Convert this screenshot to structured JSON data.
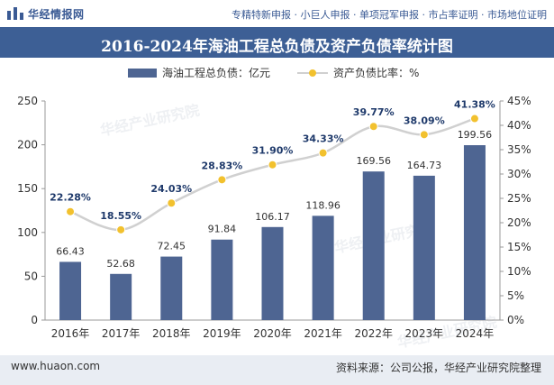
{
  "header": {
    "logo_text": "华经情报网",
    "links": "专精特新申报 · 小巨人申报 · 单项冠军申报 · 市占率证明 · 市场地位证明"
  },
  "footer": {
    "website": "www.huaon.com",
    "source": "资料来源：公司公报，华经产业研究院整理"
  },
  "watermark": "华经产业研究院",
  "colors": {
    "bar": "#4e6592",
    "line": "#d0d0d0",
    "marker": "#f2c12e",
    "title_bg": "#3d5f95"
  },
  "chart_data": {
    "type": "bar+line",
    "title": "2016-2024年海油工程总负债及资产负债率统计图",
    "categories": [
      "2016年",
      "2017年",
      "2018年",
      "2019年",
      "2020年",
      "2021年",
      "2022年",
      "2023年",
      "2024年"
    ],
    "series": [
      {
        "name": "海油工程总负债：亿元",
        "type": "bar",
        "axis": "left",
        "values": [
          66.43,
          52.68,
          72.45,
          91.84,
          106.17,
          118.96,
          169.56,
          164.73,
          199.56
        ],
        "labels": [
          "66.43",
          "52.68",
          "72.45",
          "91.84",
          "106.17",
          "118.96",
          "169.56",
          "164.73",
          "199.56"
        ]
      },
      {
        "name": "资产负债比率：%",
        "type": "line",
        "axis": "right",
        "values": [
          22.28,
          18.55,
          24.03,
          28.83,
          31.9,
          34.33,
          39.77,
          38.09,
          41.38
        ],
        "labels": [
          "22.28%",
          "18.55%",
          "24.03%",
          "28.83%",
          "31.90%",
          "34.33%",
          "39.77%",
          "38.09%",
          "41.38%"
        ]
      }
    ],
    "y_left": {
      "min": 0,
      "max": 250,
      "ticks": [
        "0",
        "50",
        "100",
        "150",
        "200",
        "250"
      ]
    },
    "y_right": {
      "min": 0,
      "max": 45,
      "ticks": [
        "0%",
        "5%",
        "10%",
        "15%",
        "20%",
        "25%",
        "30%",
        "35%",
        "40%",
        "45%"
      ]
    },
    "legend_position": "top-center",
    "grid": false
  }
}
